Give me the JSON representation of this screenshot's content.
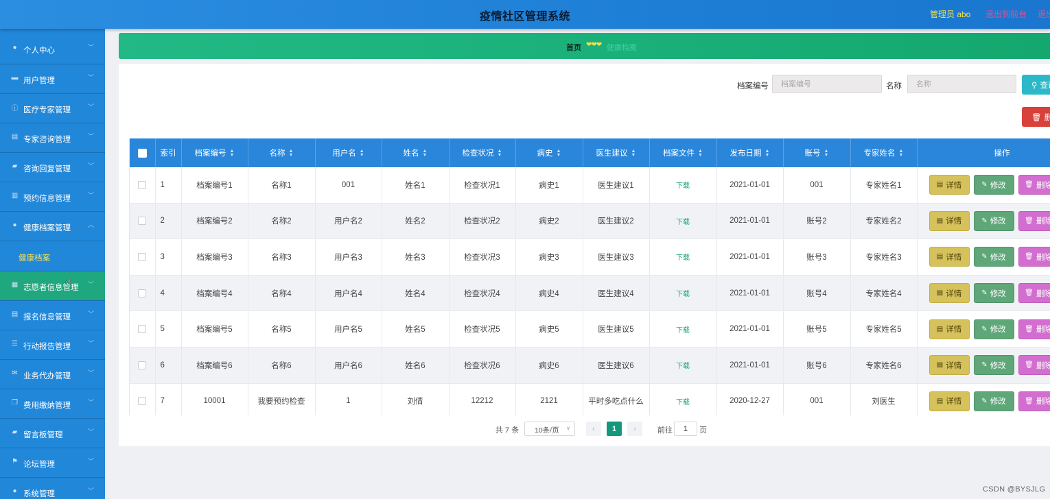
{
  "header": {
    "title": "疫情社区管理系统",
    "admin": "管理员 abo",
    "back_front": "退出到前台",
    "logout": "退出登录"
  },
  "sidebar": {
    "items": [
      {
        "label": "个人中心",
        "icon": "user-icon"
      },
      {
        "label": "用户管理",
        "icon": "monitor-icon"
      },
      {
        "label": "医疗专家管理",
        "icon": "info-icon"
      },
      {
        "label": "专家咨询管理",
        "icon": "clipboard-icon"
      },
      {
        "label": "咨询回复管理",
        "icon": "message-icon"
      },
      {
        "label": "预约信息管理",
        "icon": "chart-icon"
      },
      {
        "label": "健康档案管理",
        "icon": "user-icon"
      },
      {
        "label": "志愿者信息管理",
        "icon": "grid-icon"
      },
      {
        "label": "报名信息管理",
        "icon": "clipboard-icon"
      },
      {
        "label": "行动报告管理",
        "icon": "list-icon"
      },
      {
        "label": "业务代办管理",
        "icon": "mail-icon"
      },
      {
        "label": "费用缴纳管理",
        "icon": "copy-icon"
      },
      {
        "label": "留言板管理",
        "icon": "message-icon"
      },
      {
        "label": "论坛管理",
        "icon": "flag-icon"
      },
      {
        "label": "系统管理",
        "icon": "user-icon"
      }
    ],
    "sub_item": "健康档案"
  },
  "breadcrumb": {
    "home": "首页",
    "current": "健康档案"
  },
  "search": {
    "archive_no_label": "档案编号",
    "archive_no_placeholder": "档案编号",
    "name_label": "名称",
    "name_placeholder": "名称",
    "query_button": "查询",
    "delete_button": "删除"
  },
  "table": {
    "columns": [
      "索引",
      "档案编号",
      "名称",
      "用户名",
      "姓名",
      "检查状况",
      "病史",
      "医生建议",
      "档案文件",
      "发布日期",
      "账号",
      "专家姓名",
      "操作"
    ],
    "rows": [
      [
        "1",
        "档案编号1",
        "名称1",
        "001",
        "姓名1",
        "检查状况1",
        "病史1",
        "医生建议1",
        "下载",
        "2021-01-01",
        "001",
        "专家姓名1"
      ],
      [
        "2",
        "档案编号2",
        "名称2",
        "用户名2",
        "姓名2",
        "检查状况2",
        "病史2",
        "医生建议2",
        "下载",
        "2021-01-01",
        "账号2",
        "专家姓名2"
      ],
      [
        "3",
        "档案编号3",
        "名称3",
        "用户名3",
        "姓名3",
        "检查状况3",
        "病史3",
        "医生建议3",
        "下载",
        "2021-01-01",
        "账号3",
        "专家姓名3"
      ],
      [
        "4",
        "档案编号4",
        "名称4",
        "用户名4",
        "姓名4",
        "检查状况4",
        "病史4",
        "医生建议4",
        "下载",
        "2021-01-01",
        "账号4",
        "专家姓名4"
      ],
      [
        "5",
        "档案编号5",
        "名称5",
        "用户名5",
        "姓名5",
        "检查状况5",
        "病史5",
        "医生建议5",
        "下载",
        "2021-01-01",
        "账号5",
        "专家姓名5"
      ],
      [
        "6",
        "档案编号6",
        "名称6",
        "用户名6",
        "姓名6",
        "检查状况6",
        "病史6",
        "医生建议6",
        "下载",
        "2021-01-01",
        "账号6",
        "专家姓名6"
      ],
      [
        "7",
        "10001",
        "我要预约检查",
        "1",
        "刘倩",
        "12212",
        "2121",
        "平时多吃点什么",
        "下载",
        "2020-12-27",
        "001",
        "刘医生"
      ]
    ],
    "actions": {
      "detail": "详情",
      "edit": "修改",
      "delete": "删除"
    }
  },
  "pagination": {
    "total": "共 7 条",
    "page_size": "10条/页",
    "current_page": "1",
    "goto_label": "前往",
    "goto_value": "1",
    "page_suffix": "页"
  },
  "watermark": "CSDN @BYSJLG",
  "colors": {
    "header": "#1e7fd6",
    "sidebar": "#2187d9",
    "sidebar_active": "#1fa77e",
    "breadcrumb": "#14a86f",
    "table_header": "#2a86da",
    "pager_active": "#12987c"
  }
}
